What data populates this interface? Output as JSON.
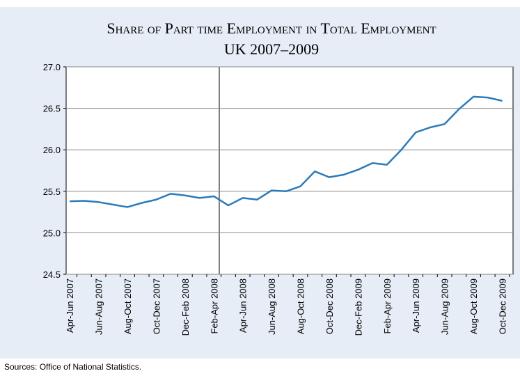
{
  "chart_data": {
    "type": "line",
    "title": "Share of Part time Employment in Total Employment",
    "subtitle": "UK 2007–2009",
    "source": "Sources: Office of National Statistics.",
    "categories": [
      "Apr-Jun 2007",
      null,
      "Jun-Aug 2007",
      null,
      "Aug-Oct 2007",
      null,
      "Oct-Dec 2007",
      null,
      "Dec-Feb 2008",
      null,
      "Feb-Apr 2008",
      null,
      "Apr-Jun 2008",
      null,
      "Jun-Aug 2008",
      null,
      "Aug-Oct 2008",
      null,
      "Oct-Dec 2008",
      null,
      "Dec-Feb 2009",
      null,
      "Feb-Apr 2009",
      null,
      "Apr-Jun 2009",
      null,
      "Jun-Aug 2009",
      null,
      "Aug-Oct 2009",
      null,
      "Oct-Dec 2009"
    ],
    "series": [
      {
        "color": "#2b7bba",
        "values": [
          25.38,
          25.385,
          25.37,
          25.34,
          25.31,
          25.36,
          25.4,
          25.47,
          25.45,
          25.42,
          25.44,
          25.33,
          25.42,
          25.4,
          25.51,
          25.5,
          25.56,
          25.74,
          25.67,
          25.7,
          25.76,
          25.84,
          25.82,
          26.0,
          26.21,
          26.27,
          26.31,
          26.49,
          26.64,
          26.63,
          26.59
        ]
      }
    ],
    "ylim": [
      24.5,
      27.0
    ],
    "yticks": [
      {
        "value": 24.5,
        "label": "24.5"
      },
      {
        "value": 25,
        "label": "25.0"
      },
      {
        "value": 25.5,
        "label": "25.5"
      },
      {
        "value": 26,
        "label": "26.0"
      },
      {
        "value": 26.5,
        "label": "26.5"
      },
      {
        "value": 27,
        "label": "27.0"
      }
    ],
    "grid": true
  }
}
